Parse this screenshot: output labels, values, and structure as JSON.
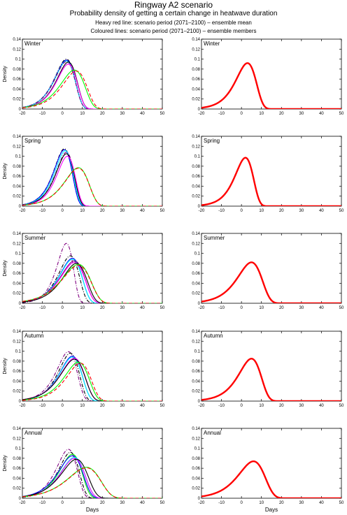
{
  "title": "Ringway A2 scenario",
  "subtitle": "Probability density of getting a certain change in heatwave duration",
  "notes": [
    "Heavy red line: scenario period (2071–2100) – ensemble mean",
    "Coloured lines: scenario period (2071–2100) – ensemble members"
  ],
  "colors": {
    "mean": "#ff0000",
    "axis": "#000000"
  },
  "member_colors": [
    "#000000",
    "#0000ff",
    "#00ff00",
    "#ff00ff",
    "#00ffff",
    "#800080",
    "#ff0000"
  ],
  "chart_data": [
    {
      "type": "line",
      "panel": "Winter",
      "column": "members",
      "xlabel": "",
      "ylabel": "Density",
      "xlim": [
        -20,
        50
      ],
      "ylim": [
        0,
        0.14
      ],
      "xticks": [
        -20,
        -10,
        0,
        10,
        20,
        30,
        40,
        50
      ],
      "yticks": [
        0,
        0.02,
        0.04,
        0.06,
        0.08,
        0.1,
        0.12,
        0.14
      ],
      "series": [
        {
          "mode": 2,
          "scale": 5,
          "peak": 0.1,
          "style": "dash-dot",
          "color": "#000000"
        },
        {
          "mode": 2,
          "scale": 5,
          "peak": 0.098,
          "style": "solid",
          "color": "#0000ff"
        },
        {
          "mode": 2,
          "scale": 5,
          "peak": 0.096,
          "style": "solid",
          "color": "#00ffff"
        },
        {
          "mode": 2,
          "scale": 5,
          "peak": 0.095,
          "style": "dash-dot",
          "color": "#800080"
        },
        {
          "mode": 3,
          "scale": 5,
          "peak": 0.094,
          "style": "solid",
          "color": "#000000"
        },
        {
          "mode": 3,
          "scale": 5,
          "peak": 0.09,
          "style": "solid",
          "color": "#ff00ff"
        },
        {
          "mode": 6,
          "scale": 6,
          "peak": 0.078,
          "style": "solid",
          "color": "#00ff00"
        },
        {
          "mode": 7,
          "scale": 6,
          "peak": 0.076,
          "style": "dashed",
          "color": "#ff0000"
        }
      ]
    },
    {
      "type": "line",
      "panel": "Winter",
      "column": "mean",
      "xlabel": "",
      "ylabel": "",
      "xlim": [
        -20,
        50
      ],
      "ylim": [
        0,
        0.14
      ],
      "xticks": [
        -20,
        -10,
        0,
        10,
        20,
        30,
        40,
        50
      ],
      "yticks": [
        0,
        0.02,
        0.04,
        0.06,
        0.08,
        0.1,
        0.12,
        0.14
      ],
      "series": [
        {
          "mode": 3,
          "scale": 5,
          "peak": 0.092,
          "style": "solid",
          "color": "#ff0000",
          "heavy": true
        }
      ]
    },
    {
      "type": "line",
      "panel": "Spring",
      "column": "members",
      "xlabel": "",
      "ylabel": "Density",
      "xlim": [
        -20,
        50
      ],
      "ylim": [
        0,
        0.14
      ],
      "xticks": [
        -20,
        -10,
        0,
        10,
        20,
        30,
        40,
        50
      ],
      "yticks": [
        0,
        0.02,
        0.04,
        0.06,
        0.08,
        0.1,
        0.12,
        0.14
      ],
      "series": [
        {
          "mode": 1,
          "scale": 4.5,
          "peak": 0.115,
          "style": "dash-dot",
          "color": "#000000"
        },
        {
          "mode": 1,
          "scale": 4.5,
          "peak": 0.113,
          "style": "solid",
          "color": "#0000ff"
        },
        {
          "mode": 1.5,
          "scale": 4.5,
          "peak": 0.111,
          "style": "solid",
          "color": "#00ffff"
        },
        {
          "mode": 2,
          "scale": 4.5,
          "peak": 0.108,
          "style": "dash-dot",
          "color": "#800080"
        },
        {
          "mode": 2,
          "scale": 4.5,
          "peak": 0.105,
          "style": "solid",
          "color": "#000000"
        },
        {
          "mode": 2.5,
          "scale": 4.5,
          "peak": 0.1,
          "style": "solid",
          "color": "#ff00ff"
        },
        {
          "mode": 8,
          "scale": 6,
          "peak": 0.077,
          "style": "solid",
          "color": "#00ff00"
        },
        {
          "mode": 8,
          "scale": 6,
          "peak": 0.076,
          "style": "dashed",
          "color": "#ff0000"
        }
      ]
    },
    {
      "type": "line",
      "panel": "Spring",
      "column": "mean",
      "xlabel": "",
      "ylabel": "",
      "xlim": [
        -20,
        50
      ],
      "ylim": [
        0,
        0.14
      ],
      "xticks": [
        -20,
        -10,
        0,
        10,
        20,
        30,
        40,
        50
      ],
      "yticks": [
        0,
        0.02,
        0.04,
        0.06,
        0.08,
        0.1,
        0.12,
        0.14
      ],
      "series": [
        {
          "mode": 2,
          "scale": 4.5,
          "peak": 0.097,
          "style": "solid",
          "color": "#ff0000",
          "heavy": true
        }
      ]
    },
    {
      "type": "line",
      "panel": "Summer",
      "column": "members",
      "xlabel": "",
      "ylabel": "Density",
      "xlim": [
        -20,
        50
      ],
      "ylim": [
        0,
        0.14
      ],
      "xticks": [
        -20,
        -10,
        0,
        10,
        20,
        30,
        40,
        50
      ],
      "yticks": [
        0,
        0.02,
        0.04,
        0.06,
        0.08,
        0.1,
        0.12,
        0.14
      ],
      "series": [
        {
          "mode": 2,
          "scale": 4,
          "peak": 0.12,
          "style": "dash-dot",
          "color": "#800080"
        },
        {
          "mode": 4,
          "scale": 5,
          "peak": 0.095,
          "style": "dash-dot",
          "color": "#000000"
        },
        {
          "mode": 5,
          "scale": 5.5,
          "peak": 0.09,
          "style": "solid",
          "color": "#0000ff"
        },
        {
          "mode": 5,
          "scale": 5.5,
          "peak": 0.088,
          "style": "solid",
          "color": "#00ffff"
        },
        {
          "mode": 6,
          "scale": 6,
          "peak": 0.085,
          "style": "solid",
          "color": "#800080"
        },
        {
          "mode": 6,
          "scale": 6,
          "peak": 0.082,
          "style": "solid",
          "color": "#ff00ff"
        },
        {
          "mode": 7,
          "scale": 6,
          "peak": 0.08,
          "style": "solid",
          "color": "#000000"
        },
        {
          "mode": 8,
          "scale": 7,
          "peak": 0.078,
          "style": "solid",
          "color": "#00ff00"
        },
        {
          "mode": 8,
          "scale": 7,
          "peak": 0.076,
          "style": "dashed",
          "color": "#ff0000"
        }
      ]
    },
    {
      "type": "line",
      "panel": "Summer",
      "column": "mean",
      "xlabel": "",
      "ylabel": "",
      "xlim": [
        -20,
        50
      ],
      "ylim": [
        0,
        0.14
      ],
      "xticks": [
        -20,
        -10,
        0,
        10,
        20,
        30,
        40,
        50
      ],
      "yticks": [
        0,
        0.02,
        0.04,
        0.06,
        0.08,
        0.1,
        0.12,
        0.14
      ],
      "series": [
        {
          "mode": 5,
          "scale": 6,
          "peak": 0.082,
          "style": "solid",
          "color": "#ff0000",
          "heavy": true
        }
      ]
    },
    {
      "type": "line",
      "panel": "Autumn",
      "column": "members",
      "xlabel": "",
      "ylabel": "Density",
      "xlim": [
        -20,
        50
      ],
      "ylim": [
        0,
        0.14
      ],
      "xticks": [
        -20,
        -10,
        0,
        10,
        20,
        30,
        40,
        50
      ],
      "yticks": [
        0,
        0.02,
        0.04,
        0.06,
        0.08,
        0.1,
        0.12,
        0.14
      ],
      "series": [
        {
          "mode": 3,
          "scale": 5,
          "peak": 0.099,
          "style": "dash-dot",
          "color": "#800080"
        },
        {
          "mode": 4,
          "scale": 5,
          "peak": 0.096,
          "style": "dash-dot",
          "color": "#000000"
        },
        {
          "mode": 5,
          "scale": 5.5,
          "peak": 0.09,
          "style": "solid",
          "color": "#0000ff"
        },
        {
          "mode": 5,
          "scale": 5.5,
          "peak": 0.088,
          "style": "solid",
          "color": "#00ffff"
        },
        {
          "mode": 6,
          "scale": 6,
          "peak": 0.086,
          "style": "solid",
          "color": "#ff00ff"
        },
        {
          "mode": 6,
          "scale": 6,
          "peak": 0.084,
          "style": "solid",
          "color": "#000000"
        },
        {
          "mode": 8,
          "scale": 6,
          "peak": 0.078,
          "style": "solid",
          "color": "#00ff00"
        },
        {
          "mode": 9,
          "scale": 6,
          "peak": 0.076,
          "style": "dashed",
          "color": "#ff0000"
        }
      ]
    },
    {
      "type": "line",
      "panel": "Autumn",
      "column": "mean",
      "xlabel": "",
      "ylabel": "",
      "xlim": [
        -20,
        50
      ],
      "ylim": [
        0,
        0.14
      ],
      "xticks": [
        -20,
        -10,
        0,
        10,
        20,
        30,
        40,
        50
      ],
      "yticks": [
        0,
        0.02,
        0.04,
        0.06,
        0.08,
        0.1,
        0.12,
        0.14
      ],
      "series": [
        {
          "mode": 5,
          "scale": 5.5,
          "peak": 0.085,
          "style": "solid",
          "color": "#ff0000",
          "heavy": true
        }
      ]
    },
    {
      "type": "line",
      "panel": "Annual",
      "column": "members",
      "xlabel": "Days",
      "ylabel": "Density",
      "xlim": [
        -20,
        50
      ],
      "ylim": [
        0,
        0.14
      ],
      "xticks": [
        -20,
        -10,
        0,
        10,
        20,
        30,
        40,
        50
      ],
      "yticks": [
        0,
        0.02,
        0.04,
        0.06,
        0.08,
        0.1,
        0.12,
        0.14
      ],
      "series": [
        {
          "mode": 3,
          "scale": 5,
          "peak": 0.098,
          "style": "dash-dot",
          "color": "#800080"
        },
        {
          "mode": 4,
          "scale": 5,
          "peak": 0.092,
          "style": "dash-dot",
          "color": "#000000"
        },
        {
          "mode": 5,
          "scale": 5.5,
          "peak": 0.088,
          "style": "solid",
          "color": "#00ff00"
        },
        {
          "mode": 5,
          "scale": 6,
          "peak": 0.085,
          "style": "solid",
          "color": "#0000ff"
        },
        {
          "mode": 6,
          "scale": 6,
          "peak": 0.082,
          "style": "solid",
          "color": "#00ffff"
        },
        {
          "mode": 6,
          "scale": 6,
          "peak": 0.08,
          "style": "solid",
          "color": "#ff00ff"
        },
        {
          "mode": 7,
          "scale": 6.5,
          "peak": 0.078,
          "style": "solid",
          "color": "#000000"
        },
        {
          "mode": 12,
          "scale": 8,
          "peak": 0.062,
          "style": "solid",
          "color": "#00ff00"
        },
        {
          "mode": 12,
          "scale": 8,
          "peak": 0.061,
          "style": "dashed",
          "color": "#ff0000"
        }
      ]
    },
    {
      "type": "line",
      "panel": "Annual",
      "column": "mean",
      "xlabel": "Days",
      "ylabel": "",
      "xlim": [
        -20,
        50
      ],
      "ylim": [
        0,
        0.14
      ],
      "xticks": [
        -20,
        -10,
        0,
        10,
        20,
        30,
        40,
        50
      ],
      "yticks": [
        0,
        0.02,
        0.04,
        0.06,
        0.08,
        0.1,
        0.12,
        0.14
      ],
      "series": [
        {
          "mode": 6,
          "scale": 6.5,
          "peak": 0.074,
          "style": "solid",
          "color": "#ff0000",
          "heavy": true
        }
      ]
    }
  ]
}
